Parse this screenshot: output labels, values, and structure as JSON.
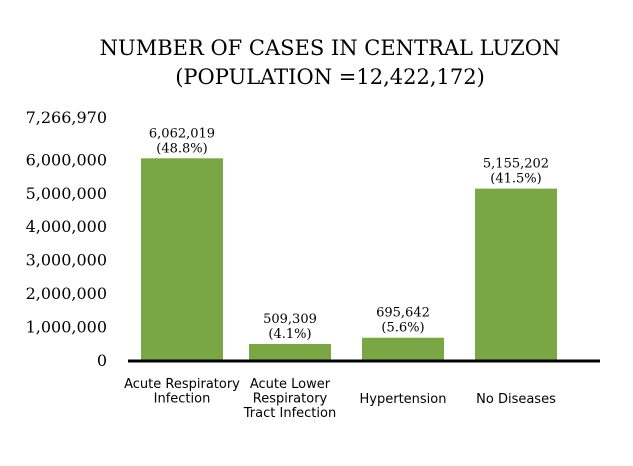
{
  "chart_data": {
    "type": "bar",
    "title_lines": [
      "NUMBER OF CASES IN CENTRAL LUZON",
      "(POPULATION =12,422,172)"
    ],
    "categories": [
      [
        "Acute Respiratory",
        "Infection"
      ],
      [
        "Acute Lower",
        "Respiratory",
        "Tract Infection"
      ],
      [
        "Hypertension"
      ],
      [
        "No Diseases"
      ]
    ],
    "values": [
      6062019,
      509309,
      695642,
      5155202
    ],
    "data_labels": [
      [
        "6,062,019",
        "(48.8%)"
      ],
      [
        "509,309",
        "(4.1%)"
      ],
      [
        "695,642",
        "(5.6%)"
      ],
      [
        "5,155,202",
        "(41.5%)"
      ]
    ],
    "y_ticks": [
      {
        "value": 0,
        "label": "0"
      },
      {
        "value": 1000000,
        "label": "1,000,000"
      },
      {
        "value": 2000000,
        "label": "2,000,000"
      },
      {
        "value": 3000000,
        "label": "3,000,000"
      },
      {
        "value": 4000000,
        "label": "4,000,000"
      },
      {
        "value": 5000000,
        "label": "5,000,000"
      },
      {
        "value": 6000000,
        "label": "6,000,000"
      },
      {
        "value": 7266970,
        "label": "7,266,970"
      }
    ],
    "ylim": [
      0,
      7266970
    ],
    "grid": false,
    "bar_color": "#7ba646",
    "axis_color": "#000000"
  }
}
